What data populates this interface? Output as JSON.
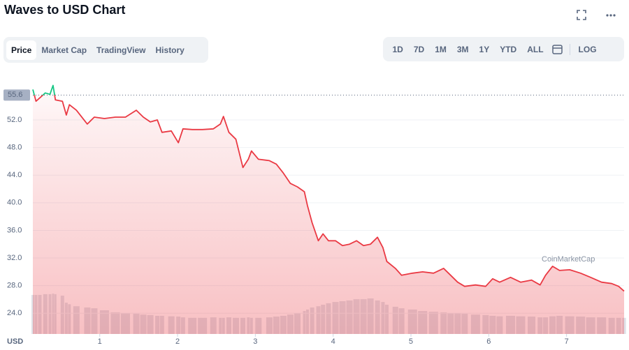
{
  "chart_data": {
    "type": "line",
    "title": "Waves to USD Chart",
    "x": [
      0.14,
      0.18,
      0.23,
      0.3,
      0.36,
      0.4,
      0.43,
      0.52,
      0.57,
      0.61,
      0.7,
      0.84,
      0.93,
      1.06,
      1.2,
      1.33,
      1.47,
      1.56,
      1.65,
      1.74,
      1.8,
      1.92,
      2.01,
      2.07,
      2.19,
      2.32,
      2.46,
      2.55,
      2.59,
      2.66,
      2.75,
      2.84,
      2.91,
      2.95,
      3.04,
      3.18,
      3.27,
      3.36,
      3.45,
      3.54,
      3.63,
      3.67,
      3.73,
      3.81,
      3.87,
      3.94,
      4.03,
      4.12,
      4.21,
      4.3,
      4.39,
      4.48,
      4.57,
      4.64,
      4.69,
      4.8,
      4.88,
      5.02,
      5.15,
      5.29,
      5.42,
      5.51,
      5.6,
      5.69,
      5.83,
      5.96,
      6.05,
      6.14,
      6.28,
      6.41,
      6.55,
      6.66,
      6.73,
      6.82,
      6.91,
      7.04,
      7.18,
      7.31,
      7.45,
      7.58,
      7.67,
      7.74
    ],
    "series": [
      {
        "color": "#ea3943",
        "color_above": "#16c784",
        "values": [
          56.4,
          54.7,
          55.2,
          55.9,
          55.7,
          57.0,
          54.9,
          54.7,
          52.7,
          54.2,
          53.4,
          51.4,
          52.4,
          52.2,
          52.4,
          52.4,
          53.4,
          52.4,
          51.7,
          52.0,
          50.2,
          50.4,
          48.7,
          50.7,
          50.6,
          50.6,
          50.7,
          51.4,
          52.5,
          50.2,
          49.2,
          45.1,
          46.3,
          47.5,
          46.3,
          46.1,
          45.6,
          44.3,
          42.8,
          42.3,
          41.6,
          39.6,
          37.1,
          34.5,
          35.5,
          34.5,
          34.5,
          33.8,
          34.0,
          34.5,
          33.8,
          34.0,
          35.0,
          33.5,
          31.5,
          30.5,
          29.5,
          29.8,
          30.0,
          29.8,
          30.5,
          29.5,
          28.5,
          27.9,
          28.1,
          27.9,
          29.0,
          28.5,
          29.2,
          28.5,
          28.8,
          28.1,
          29.5,
          30.8,
          30.2,
          30.3,
          29.8,
          29.2,
          28.5,
          28.3,
          27.9,
          27.2
        ]
      },
      {
        "type": "bar",
        "axis": "y2",
        "color": "#dfe2e8",
        "values": [
          15.5,
          15.5,
          15.5,
          15.8,
          15.8,
          16.0,
          15.8,
          15.2,
          12.4,
          11.8,
          11.0,
          10.5,
          10.2,
          9.4,
          8.6,
          8.3,
          8.0,
          7.7,
          7.5,
          7.2,
          7.2,
          7.0,
          6.9,
          6.6,
          6.4,
          6.4,
          6.6,
          6.4,
          6.4,
          6.6,
          6.4,
          6.4,
          6.6,
          6.4,
          6.4,
          6.6,
          6.9,
          7.2,
          7.7,
          8.3,
          9.1,
          9.7,
          10.5,
          11.0,
          11.6,
          12.2,
          12.7,
          13.0,
          13.3,
          13.8,
          13.8,
          14.1,
          13.3,
          12.7,
          11.6,
          10.8,
          10.2,
          9.7,
          9.1,
          8.8,
          8.6,
          8.3,
          8.3,
          8.0,
          7.7,
          7.5,
          7.2,
          7.0,
          7.2,
          7.0,
          6.9,
          6.6,
          6.6,
          7.0,
          7.2,
          7.0,
          6.9,
          6.6,
          6.6,
          6.4,
          6.4,
          6.4
        ]
      }
    ],
    "reference_line": 55.6,
    "xlim": [
      0.14,
      7.74
    ],
    "xticks": [
      1,
      2,
      3,
      4,
      5,
      6,
      7
    ],
    "ylim": [
      21,
      57.5
    ],
    "yticks": [
      {
        "value": 24,
        "label": "24.0"
      },
      {
        "value": 28,
        "label": "28.0"
      },
      {
        "value": 32,
        "label": "32.0"
      },
      {
        "value": 36,
        "label": "36.0"
      },
      {
        "value": 40,
        "label": "40.0"
      },
      {
        "value": 44,
        "label": "44.0"
      },
      {
        "value": 48,
        "label": "48.0"
      },
      {
        "value": 52,
        "label": "52.0"
      }
    ],
    "y2lim": [
      0,
      100
    ],
    "grid": true,
    "x_axis_label": "USD",
    "watermark": "CoinMarketCap"
  },
  "toolbar": {
    "tabs": [
      "Price",
      "Market Cap",
      "TradingView",
      "History"
    ],
    "ranges": [
      "1D",
      "7D",
      "1M",
      "3M",
      "1Y",
      "YTD",
      "ALL"
    ],
    "log": "LOG"
  }
}
